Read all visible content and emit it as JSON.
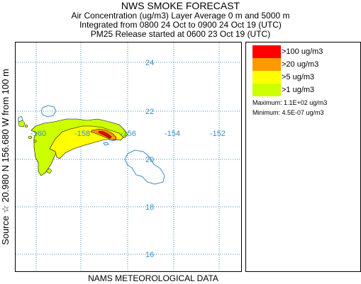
{
  "header": {
    "title": "NWS SMOKE FORECAST",
    "line2": "Air Concentration (ug/m3) Layer Average    0 m and  5000 m",
    "line3": "Integrated from 0800 24 Oct to 0900 24 Oct 19 (UTC)",
    "line4": "PM25 Release started at 0600 23 Oct 19 (UTC)"
  },
  "map": {
    "latitude_ticks": [
      24,
      22,
      20,
      18,
      16
    ],
    "longitude_ticks": [
      -160,
      -158,
      -156,
      -154,
      -152
    ],
    "latitude_labels": [
      "24",
      "22",
      "20",
      "18",
      "16"
    ],
    "longitude_labels": [
      "-160",
      "-158",
      "-156",
      "-154",
      "-152"
    ],
    "coastline_color": "#3a8fc4",
    "gridline_color": "#3a8fc4"
  },
  "legend": {
    "levels": [
      {
        "label": ">100 ug/m3",
        "color": "#ff0000"
      },
      {
        "label": ">20 ug/m3",
        "color": "#ff9900"
      },
      {
        "label": ">5 ug/m3",
        "color": "#ffff00"
      },
      {
        "label": ">1 ug/m3",
        "color": "#ccff00"
      }
    ],
    "maximum": "Maximum: 1.1E+02 ug/m3",
    "minimum": "Minimum: 4.5E-07 ug/m3"
  },
  "side_label": "Source ☆  20.980  N 156.680  W    from  100 m",
  "bottom_label": "NAMS METEOROLOGICAL DATA"
}
